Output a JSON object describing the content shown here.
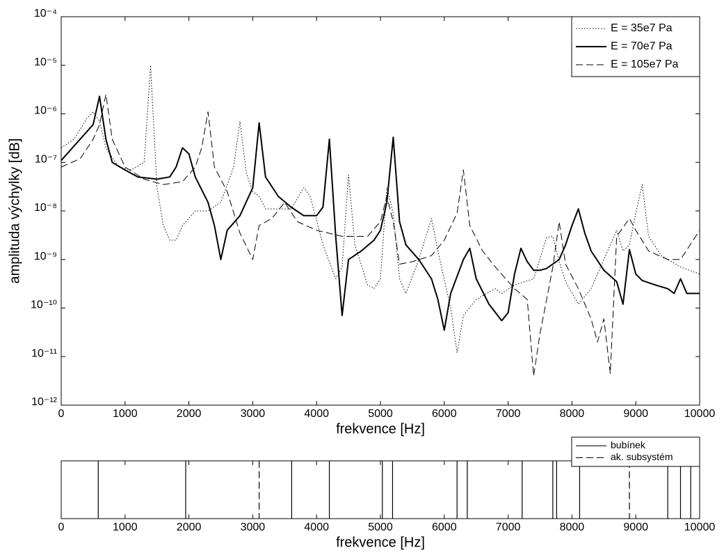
{
  "chart_data": [
    {
      "type": "line",
      "yscale": "log",
      "xlabel": "frekvence  [Hz]",
      "ylabel": "amplituda výchylky  [dB]",
      "xlim": [
        0,
        10000
      ],
      "xticks": [
        0,
        1000,
        2000,
        3000,
        4000,
        5000,
        6000,
        7000,
        8000,
        9000,
        10000
      ],
      "ylim": [
        1e-12,
        0.0001
      ],
      "yticks": [
        {
          "value": 1e-12,
          "label": "10⁻¹²"
        },
        {
          "value": 1e-11,
          "label": "10⁻¹¹"
        },
        {
          "value": 1e-10,
          "label": "10⁻¹⁰"
        },
        {
          "value": 1e-09,
          "label": "10⁻⁹"
        },
        {
          "value": 1e-08,
          "label": "10⁻⁸"
        },
        {
          "value": 1e-07,
          "label": "10⁻⁷"
        },
        {
          "value": 1e-06,
          "label": "10⁻⁶"
        },
        {
          "value": 1e-05,
          "label": "10⁻⁵"
        },
        {
          "value": 0.0001,
          "label": "10⁻⁴"
        }
      ],
      "grid": false,
      "legend": "upper right",
      "series": [
        {
          "name": "E = 35e7 Pa",
          "color": "#000000",
          "linestyle": "dotted",
          "linewidth": 1,
          "x": [
            0,
            200,
            400,
            500,
            600,
            700,
            900,
            1100,
            1300,
            1400,
            1500,
            1600,
            1700,
            1800,
            1900,
            2100,
            2300,
            2500,
            2700,
            2800,
            2900,
            3000,
            3100,
            3200,
            3600,
            3800,
            3900,
            4100,
            4300,
            4400,
            4500,
            4600,
            4800,
            4900,
            5000,
            5100,
            5200,
            5300,
            5400,
            5600,
            5800,
            5900,
            6100,
            6200,
            6300,
            6500,
            6800,
            6900,
            7100,
            7400,
            7600,
            7700,
            7800,
            7900,
            8100,
            8300,
            8500,
            8700,
            8800,
            8900,
            9000,
            9100,
            9200,
            9400,
            9700,
            10000
          ],
          "values": [
            2e-07,
            3e-07,
            8e-07,
            1.1e-06,
            7e-07,
            2e-07,
            8e-08,
            7e-08,
            1e-07,
            1e-05,
            3e-08,
            5e-09,
            2.5e-09,
            2.5e-09,
            5e-09,
            1e-08,
            1e-08,
            1.5e-08,
            8e-08,
            7e-07,
            6e-08,
            2.5e-08,
            2e-08,
            1.1e-08,
            1.1e-08,
            3e-08,
            2e-08,
            2e-09,
            4e-10,
            7e-10,
            5.5e-08,
            2e-09,
            3e-10,
            2.5e-10,
            4e-10,
            3e-08,
            9e-09,
            4e-10,
            2e-10,
            1e-09,
            7e-09,
            1.5e-09,
            1e-10,
            1.2e-11,
            7e-11,
            1.5e-10,
            2.5e-10,
            2e-10,
            3e-10,
            4e-10,
            2.8e-09,
            3e-09,
            9e-10,
            3.5e-10,
            1.2e-10,
            2.5e-10,
            1e-09,
            4e-09,
            1.5e-09,
            2e-09,
            9e-09,
            3.5e-08,
            3e-09,
            1.2e-09,
            7e-10,
            5e-10
          ]
        },
        {
          "name": "E = 70e7 Pa",
          "color": "#000000",
          "linestyle": "solid",
          "linewidth": 2,
          "x": [
            0,
            500,
            600,
            700,
            800,
            1000,
            1200,
            1500,
            1700,
            1800,
            1900,
            2000,
            2100,
            2300,
            2400,
            2500,
            2600,
            2800,
            3000,
            3100,
            3200,
            3400,
            3600,
            3800,
            4000,
            4100,
            4200,
            4300,
            4400,
            4500,
            4700,
            4900,
            5000,
            5100,
            5200,
            5300,
            5400,
            5600,
            5800,
            5900,
            6000,
            6100,
            6300,
            6400,
            6500,
            6700,
            6900,
            7000,
            7100,
            7200,
            7300,
            7400,
            7500,
            7600,
            7800,
            7900,
            8000,
            8100,
            8200,
            8300,
            8500,
            8700,
            8800,
            8900,
            9000,
            9100,
            9300,
            9500,
            9600,
            9700,
            9800,
            10000
          ],
          "values": [
            1.1e-07,
            6e-07,
            2.3e-06,
            3e-07,
            1e-07,
            7e-08,
            5e-08,
            4.5e-08,
            5e-08,
            8e-08,
            2e-07,
            1.5e-07,
            5e-08,
            1.5e-08,
            5e-09,
            1e-09,
            4e-09,
            8e-09,
            3e-08,
            6.5e-07,
            5e-08,
            2e-08,
            1.2e-08,
            8e-09,
            8e-09,
            1.2e-08,
            3e-07,
            3e-09,
            7e-11,
            1e-09,
            1.5e-09,
            2.5e-09,
            4e-09,
            1.5e-08,
            3.3e-07,
            6e-09,
            2e-09,
            1e-09,
            4e-10,
            1.5e-10,
            3.5e-11,
            2e-10,
            1e-09,
            1.7e-09,
            4e-10,
            1.2e-10,
            5.5e-11,
            8e-11,
            5e-10,
            1.7e-09,
            9e-10,
            6e-10,
            6e-10,
            6.5e-10,
            1e-09,
            2e-09,
            5e-09,
            1.1e-08,
            3.5e-09,
            1.5e-09,
            6e-10,
            3.5e-10,
            1.2e-10,
            1.6e-09,
            5e-10,
            3.7e-10,
            3e-10,
            2.5e-10,
            2e-10,
            4e-10,
            2e-10,
            2e-10
          ]
        },
        {
          "name": "E = 105e7 Pa",
          "color": "#000000",
          "linestyle": "dashed",
          "linewidth": 1,
          "x": [
            0,
            300,
            500,
            600,
            700,
            800,
            1000,
            1300,
            1600,
            1900,
            2100,
            2200,
            2300,
            2400,
            2600,
            2800,
            3000,
            3100,
            3300,
            3500,
            3700,
            4000,
            4400,
            4800,
            5000,
            5100,
            5200,
            5300,
            5500,
            5800,
            6000,
            6200,
            6300,
            6400,
            6600,
            6800,
            7100,
            7300,
            7400,
            7500,
            7700,
            7800,
            7900,
            8100,
            8300,
            8400,
            8500,
            8600,
            8700,
            8900,
            9000,
            9200,
            9500,
            9700,
            10000
          ],
          "values": [
            8e-08,
            1.2e-07,
            3e-07,
            6e-07,
            2.5e-06,
            3e-07,
            8e-08,
            4.5e-08,
            3.5e-08,
            4e-08,
            8e-08,
            2e-07,
            1.1e-06,
            8e-08,
            2.5e-08,
            3.5e-09,
            1e-09,
            5e-09,
            7e-09,
            1.5e-08,
            6e-09,
            4e-09,
            3e-09,
            3e-09,
            6e-09,
            2e-08,
            6e-09,
            8e-10,
            9e-10,
            1.2e-09,
            2.5e-09,
            9e-09,
            7e-08,
            5e-09,
            1.5e-09,
            7e-10,
            2.5e-10,
            1.5e-10,
            4e-12,
            3e-11,
            7e-10,
            6e-09,
            8e-10,
            2.5e-10,
            6e-11,
            2e-11,
            6e-11,
            4.5e-12,
            3e-09,
            7e-09,
            4e-09,
            1.5e-09,
            1e-09,
            1e-09,
            4e-09
          ]
        }
      ]
    },
    {
      "type": "vlines",
      "xlabel": "frekvence  [Hz]",
      "xlim": [
        0,
        10000
      ],
      "xticks": [
        0,
        1000,
        2000,
        3000,
        4000,
        5000,
        6000,
        7000,
        8000,
        9000,
        10000
      ],
      "legend": "above right",
      "series": [
        {
          "name": "bubínek",
          "color": "#000000",
          "linestyle": "solid",
          "values": [
            580,
            1950,
            3610,
            4200,
            5030,
            5190,
            6200,
            6360,
            7220,
            7700,
            7760,
            8120,
            9500,
            9700,
            9860
          ]
        },
        {
          "name": "ak. subsystém",
          "color": "#000000",
          "linestyle": "dashed",
          "values": [
            3100,
            8900
          ]
        }
      ]
    }
  ]
}
